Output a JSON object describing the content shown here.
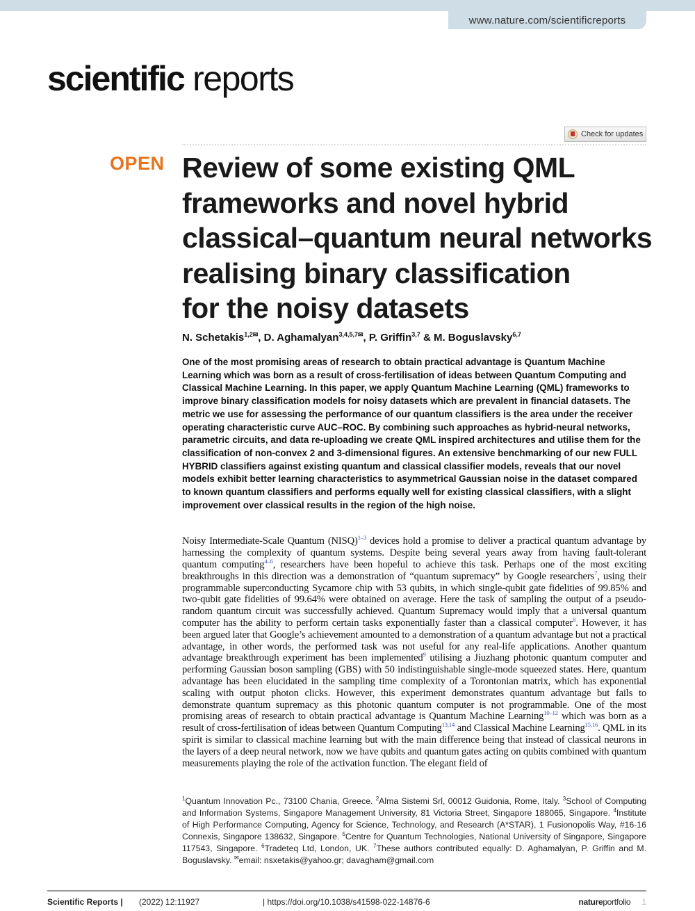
{
  "header": {
    "url": "www.nature.com/scientificreports",
    "journal_logo_bold": "scientific",
    "journal_logo_light": "reports",
    "check_updates": "Check for updates"
  },
  "article": {
    "open_label": "OPEN",
    "title_lines": [
      "Review of some existing QML",
      "frameworks and novel hybrid",
      "classical–quantum neural networks",
      "realising binary classification",
      "for the noisy datasets"
    ],
    "authors": [
      {
        "name": "N. Schetakis",
        "sup": "1,2✉",
        "sep": ", "
      },
      {
        "name": "D. Aghamalyan",
        "sup": "3,4,5,7✉",
        "sep": ", "
      },
      {
        "name": "P. Griffin",
        "sup": "3,7",
        "sep": " & "
      },
      {
        "name": "M. Boguslavsky",
        "sup": "6,7",
        "sep": ""
      }
    ],
    "abstract": "One of the most promising areas of research to obtain practical advantage is Quantum Machine Learning which was born as a result of cross-fertilisation of ideas between Quantum Computing and Classical Machine Learning. In this paper, we apply Quantum Machine Learning (QML) frameworks to improve binary classification models for noisy datasets which are prevalent in financial datasets. The metric we use for assessing the performance of our quantum classifiers is the area under the receiver operating characteristic curve AUC–ROC. By combining such approaches as hybrid-neural networks, parametric circuits, and data re-uploading we create QML inspired architectures and utilise them for the classification of non-convex 2 and 3-dimensional figures. An extensive benchmarking of our new FULL HYBRID classifiers against existing quantum and classical classifier models, reveals that our novel models exhibit better learning characteristics to asymmetrical Gaussian noise in the dataset compared to known quantum classifiers and performs equally well for existing classical classifiers, with a slight improvement over classical results in the region of the high noise.",
    "body": [
      {
        "t": "Noisy Intermediate-Scale Quantum (NISQ)"
      },
      {
        "sup": "1–3"
      },
      {
        "t": " devices hold a promise to deliver a practical quantum advantage by harnessing the complexity of quantum systems. Despite being several years away from having fault-tolerant quantum computing"
      },
      {
        "sup": "4–6"
      },
      {
        "t": ", researchers have been hopeful to achieve this task. Perhaps one of the most exciting breakthroughs in this direction was a demonstration of “quantum supremacy” by Google researchers"
      },
      {
        "sup": "7"
      },
      {
        "t": ", using their programmable superconducting Sycamore chip with 53 qubits, in which single-qubit gate fidelities of 99.85% and two-qubit gate fidelities of 99.64% were obtained on average. Here the task of sampling the output of a pseudo-random quantum circuit was successfully achieved. Quantum Supremacy would imply that a universal quantum computer has the ability to perform certain tasks exponentially faster than a classical computer"
      },
      {
        "sup": "8"
      },
      {
        "t": ". However, it has been argued later that Google’s achievement amounted to a demonstration of a quantum advantage but not a practical advantage, in other words, the performed task was not useful for any real-life applications. Another quantum advantage breakthrough experiment has been implemented"
      },
      {
        "sup": "9"
      },
      {
        "t": " utilising a Jiuzhang photonic quantum computer and performing Gaussian boson sampling (GBS) with 50 indistinguishable single-mode squeezed states. Here, quantum advantage has been elucidated in the sampling time complexity of a Torontonian matrix, which has exponential scaling with output photon clicks. However, this experiment demonstrates quantum advantage but fails to demonstrate quantum supremacy as this photonic quantum computer is not programmable. One of the most promising areas of research to obtain practical advantage is Quantum Machine Learning"
      },
      {
        "sup": "10–12"
      },
      {
        "t": " which was born as a result of cross-fertilisation of ideas between Quantum Computing"
      },
      {
        "sup": "13,14"
      },
      {
        "t": " and Classical Machine Learning"
      },
      {
        "sup": "15,16"
      },
      {
        "t": ". QML in its spirit is similar to classical machine learning but with the main difference being that instead of classical neurons in the layers of a deep neural network, now we have qubits and quantum gates acting on qubits combined with quantum measurements playing the role of the activation function. The elegant field of"
      }
    ],
    "affiliations": [
      {
        "sup": "1",
        "t": "Quantum Innovation Pc., 73100 Chania, Greece. "
      },
      {
        "sup": "2",
        "t": "Alma Sistemi Srl, 00012 Guidonia, Rome, Italy. "
      },
      {
        "sup": "3",
        "t": "School of Computing and Information Systems, Singapore Management University, 81 Victoria Street, Singapore 188065, Singapore. "
      },
      {
        "sup": "4",
        "t": "Institute of High Performance Computing, Agency for Science, Technology, and Research (A*STAR), 1 Fusionopolis Way, #16-16 Connexis, Singapore 138632, Singapore. "
      },
      {
        "sup": "5",
        "t": "Centre for Quantum Technologies, National University of Singapore, Singapore 117543, Singapore. "
      },
      {
        "sup": "6",
        "t": "Tradeteq Ltd, London, UK. "
      },
      {
        "sup": "7",
        "t": "These authors contributed equally: D. Aghamalyan, P. Griffin and M. Boguslavsky. "
      },
      {
        "sup": "✉",
        "t": "email: nsxetakis@yahoo.gr; davagham@gmail.com"
      }
    ]
  },
  "footer": {
    "journal": "Scientific Reports |",
    "citation": "(2022) 12:11927",
    "doi": "| https://doi.org/10.1038/s41598-022-14876-6",
    "brand_bold": "nature",
    "brand_light": "portfolio",
    "page": "1"
  },
  "colors": {
    "open": "#e8731d",
    "header_band": "#cfdde6",
    "citation_link": "#3a4fb5"
  }
}
